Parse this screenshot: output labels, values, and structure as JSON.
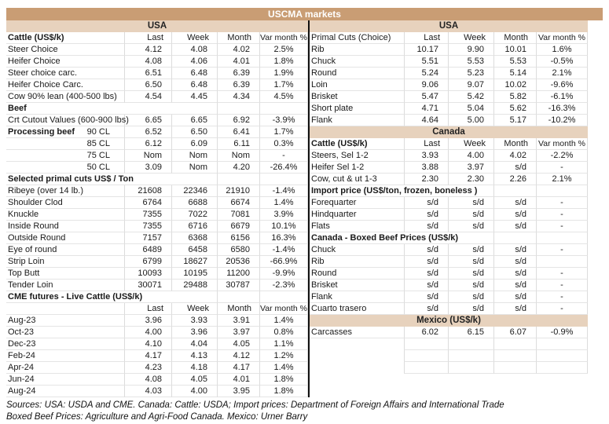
{
  "title": "USCMA markets",
  "colors": {
    "title_bar": "#c99d74",
    "section_band": "#e7d2bd",
    "grid_line": "#e0e0e0",
    "divider": "#111111"
  },
  "columns": [
    "Last",
    "Week",
    "Month",
    "Var month %"
  ],
  "left": {
    "rows": [
      {
        "type": "band",
        "label": "USA"
      },
      {
        "type": "colheader",
        "label": "Cattle (US$/k)",
        "bold": true,
        "values": [
          "Last",
          "Week",
          "Month",
          "Var month %"
        ]
      },
      {
        "type": "data",
        "label": "Steer Choice",
        "values": [
          "4.12",
          "4.08",
          "4.02",
          "2.5%"
        ]
      },
      {
        "type": "data",
        "label": "Heifer Choice",
        "values": [
          "4.08",
          "4.06",
          "4.01",
          "1.8%"
        ]
      },
      {
        "type": "data",
        "label": "Steer choice carc.",
        "values": [
          "6.51",
          "6.48",
          "6.39",
          "1.9%"
        ]
      },
      {
        "type": "data",
        "label": "Heifer Choice Carc.",
        "values": [
          "6.50",
          "6.48",
          "6.39",
          "1.7%"
        ]
      },
      {
        "type": "data",
        "label": "Cow 90% lean (400-500 lbs)",
        "values": [
          "4.54",
          "4.45",
          "4.34",
          "4.5%"
        ]
      },
      {
        "type": "data",
        "label": "Beef",
        "bold": true,
        "values": [
          "",
          "",
          "",
          ""
        ]
      },
      {
        "type": "data",
        "label": "Crt Cutout Values (600-900 lbs)",
        "values": [
          "6.65",
          "6.65",
          "6.92",
          "-3.9%"
        ]
      },
      {
        "type": "data",
        "label": "Processing beef",
        "bold": true,
        "sub": "90 CL",
        "values": [
          "6.52",
          "6.50",
          "6.41",
          "1.7%"
        ]
      },
      {
        "type": "data",
        "label": "",
        "sub": "85 CL",
        "values": [
          "6.12",
          "6.09",
          "6.11",
          "0.3%"
        ]
      },
      {
        "type": "data",
        "label": "",
        "sub": "75 CL",
        "values": [
          "Nom",
          "Nom",
          "Nom",
          "-"
        ]
      },
      {
        "type": "data",
        "label": "",
        "sub": "50 CL",
        "values": [
          "3.09",
          "Nom",
          "4.20",
          "-26.4%"
        ]
      },
      {
        "type": "data",
        "label": "Selected primal cuts US$ / Ton",
        "bold": true,
        "values": [
          "",
          "",
          "",
          ""
        ]
      },
      {
        "type": "data",
        "label": "Ribeye (over 14 lb.)",
        "values": [
          "21608",
          "22346",
          "21910",
          "-1.4%"
        ]
      },
      {
        "type": "data",
        "label": "Shoulder Clod",
        "values": [
          "6764",
          "6688",
          "6674",
          "1.4%"
        ]
      },
      {
        "type": "data",
        "label": "Knuckle",
        "values": [
          "7355",
          "7022",
          "7081",
          "3.9%"
        ]
      },
      {
        "type": "data",
        "label": "Inside Round",
        "values": [
          "7355",
          "6716",
          "6679",
          "10.1%"
        ]
      },
      {
        "type": "data",
        "label": "Outside Round",
        "values": [
          "7157",
          "6368",
          "6156",
          "16.3%"
        ]
      },
      {
        "type": "data",
        "label": "Eye of round",
        "values": [
          "6489",
          "6458",
          "6580",
          "-1.4%"
        ]
      },
      {
        "type": "data",
        "label": "Strip Loin",
        "values": [
          "6799",
          "18627",
          "20536",
          "-66.9%"
        ]
      },
      {
        "type": "data",
        "label": "Top Butt",
        "values": [
          "10093",
          "10195",
          "11200",
          "-9.9%"
        ]
      },
      {
        "type": "data",
        "label": "Tender Loin",
        "values": [
          "30071",
          "29488",
          "30787",
          "-2.3%"
        ]
      },
      {
        "type": "data",
        "label": "CME futures - Live Cattle (US$/k)",
        "bold": true,
        "values": [
          "",
          "",
          "",
          ""
        ]
      },
      {
        "type": "colheader",
        "label": "",
        "bold": false,
        "values": [
          "Last",
          "Week",
          "Month",
          "Var month %"
        ]
      },
      {
        "type": "data",
        "label": "Aug-23",
        "values": [
          "3.96",
          "3.93",
          "3.91",
          "1.4%"
        ]
      },
      {
        "type": "data",
        "label": "Oct-23",
        "values": [
          "4.00",
          "3.96",
          "3.97",
          "0.8%"
        ]
      },
      {
        "type": "data",
        "label": "Dec-23",
        "values": [
          "4.10",
          "4.04",
          "4.05",
          "1.1%"
        ]
      },
      {
        "type": "data",
        "label": "Feb-24",
        "values": [
          "4.17",
          "4.13",
          "4.12",
          "1.2%"
        ]
      },
      {
        "type": "data",
        "label": "Apr-24",
        "values": [
          "4.23",
          "4.18",
          "4.17",
          "1.4%"
        ]
      },
      {
        "type": "data",
        "label": "Jun-24",
        "values": [
          "4.08",
          "4.05",
          "4.01",
          "1.8%"
        ]
      },
      {
        "type": "data",
        "label": "Aug-24",
        "values": [
          "4.03",
          "4.00",
          "3.95",
          "1.8%"
        ]
      }
    ]
  },
  "right": {
    "rows": [
      {
        "type": "band",
        "label": "USA"
      },
      {
        "type": "colheader",
        "label": "Primal Cuts (Choice)",
        "bold": false,
        "values": [
          "Last",
          "Week",
          "Month",
          "Var month %"
        ]
      },
      {
        "type": "data",
        "label": "Rib",
        "values": [
          "10.17",
          "9.90",
          "10.01",
          "1.6%"
        ]
      },
      {
        "type": "data",
        "label": "Chuck",
        "values": [
          "5.51",
          "5.53",
          "5.53",
          "-0.5%"
        ]
      },
      {
        "type": "data",
        "label": "Round",
        "values": [
          "5.24",
          "5.23",
          "5.14",
          "2.1%"
        ]
      },
      {
        "type": "data",
        "label": "Loin",
        "values": [
          "9.06",
          "9.07",
          "10.02",
          "-9.6%"
        ]
      },
      {
        "type": "data",
        "label": "Brisket",
        "values": [
          "5.47",
          "5.42",
          "5.82",
          "-6.1%"
        ]
      },
      {
        "type": "data",
        "label": "Short plate",
        "values": [
          "4.71",
          "5.04",
          "5.62",
          "-16.3%"
        ]
      },
      {
        "type": "data",
        "label": "Flank",
        "values": [
          "4.64",
          "5.00",
          "5.17",
          "-10.2%"
        ]
      },
      {
        "type": "band",
        "label": "Canada"
      },
      {
        "type": "colheader",
        "label": "Cattle (US$/k)",
        "bold": true,
        "values": [
          "Last",
          "Week",
          "Month",
          "Var month %"
        ]
      },
      {
        "type": "data",
        "label": "Steers, Sel 1-2",
        "values": [
          "3.93",
          "4.00",
          "4.02",
          "-2.2%"
        ]
      },
      {
        "type": "data",
        "label": "Heifer Sel 1-2",
        "values": [
          "3.88",
          "3.97",
          "s/d",
          "-"
        ]
      },
      {
        "type": "data",
        "label": "Cow, cut & ut 1-3",
        "values": [
          "2.30",
          "2.30",
          "2.26",
          "2.1%"
        ]
      },
      {
        "type": "data",
        "label": "Import price (US$/ton, frozen, boneless )",
        "bold": true,
        "values": [
          "",
          "",
          "",
          ""
        ]
      },
      {
        "type": "data",
        "label": "Forequarter",
        "values": [
          "s/d",
          "s/d",
          "s/d",
          "-"
        ]
      },
      {
        "type": "data",
        "label": "Hindquarter",
        "values": [
          "s/d",
          "s/d",
          "s/d",
          "-"
        ]
      },
      {
        "type": "data",
        "label": "Flats",
        "values": [
          "s/d",
          "s/d",
          "s/d",
          "-"
        ]
      },
      {
        "type": "data",
        "label": "Canada - Boxed Beef Prices (US$/k)",
        "bold": true,
        "values": [
          "",
          "",
          "",
          ""
        ]
      },
      {
        "type": "data",
        "label": "Chuck",
        "values": [
          "s/d",
          "s/d",
          "s/d",
          "-"
        ]
      },
      {
        "type": "data",
        "label": "Rib",
        "values": [
          "s/d",
          "s/d",
          "s/d",
          ""
        ]
      },
      {
        "type": "data",
        "label": "Round",
        "values": [
          "s/d",
          "s/d",
          "s/d",
          "-"
        ]
      },
      {
        "type": "data",
        "label": "Brisket",
        "values": [
          "s/d",
          "s/d",
          "s/d",
          "-"
        ]
      },
      {
        "type": "data",
        "label": "Flank",
        "values": [
          "s/d",
          "s/d",
          "s/d",
          "-"
        ]
      },
      {
        "type": "data",
        "label": "Cuarto trasero",
        "values": [
          "s/d",
          "s/d",
          "s/d",
          "-"
        ]
      },
      {
        "type": "band",
        "label": "Mexico (US$/k)"
      },
      {
        "type": "data",
        "label": "Carcasses",
        "values": [
          "6.02",
          "6.15",
          "6.07",
          "-0.9%"
        ]
      },
      {
        "type": "data",
        "label": "",
        "values": [
          "",
          "",
          "",
          ""
        ]
      },
      {
        "type": "data",
        "label": "",
        "values": [
          "",
          "",
          "",
          ""
        ]
      },
      {
        "type": "data",
        "label": "",
        "values": [
          "",
          "",
          "",
          ""
        ]
      }
    ]
  },
  "footer": {
    "line1": "Sources: USA: USDA and CME. Canada: Cattle: USDA; Import prices: Department of Foreign Affairs and International Trade",
    "line2": "Boxed Beef Prices: Agriculture and Agri-Food Canada. Mexico: Urner Barry"
  }
}
